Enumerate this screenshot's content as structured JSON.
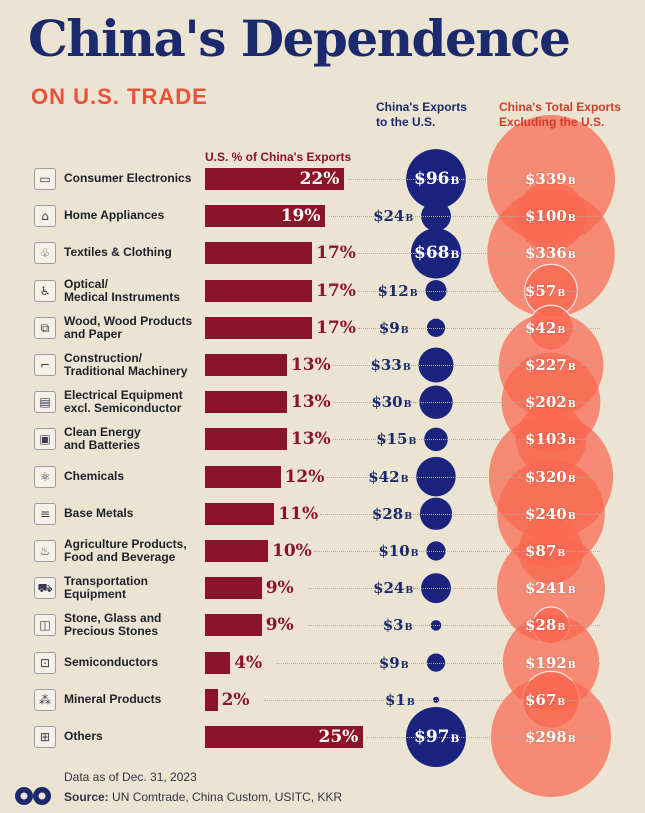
{
  "title": "China's Dependence",
  "subtitle": "ON U.S. TRADE",
  "headers": {
    "pct": "U.S. % of China's Exports",
    "us_line1": "China's Exports",
    "us_line2": "to the U.S.",
    "ex_line1": "China's Total Exports",
    "ex_line2": "Excluding the U.S."
  },
  "footer": {
    "date": "Data as of Dec. 31, 2023",
    "source_label": "Source:",
    "source_text": " UN Comtrade, China Custom, USITC, KKR"
  },
  "colors": {
    "title": "#1a2a6c",
    "subtitle": "#e8513a",
    "bar": "#8b1428",
    "us_bubble": "#1a237e",
    "ex_bubble": "#f9674f"
  },
  "chart_data": {
    "type": "bar",
    "unit_suffix": "B",
    "categories": [
      {
        "line1": "Consumer Electronics",
        "line2": "",
        "icon": "tv-icon",
        "glyph": "▭"
      },
      {
        "line1": "Home Appliances",
        "line2": "",
        "icon": "sofa-icon",
        "glyph": "⌂"
      },
      {
        "line1": "Textiles & Clothing",
        "line2": "",
        "icon": "shirt-icon",
        "glyph": "♧"
      },
      {
        "line1": "Optical/",
        "line2": "Medical Instruments",
        "icon": "wheelchair-icon",
        "glyph": "♿"
      },
      {
        "line1": "Wood, Wood Products",
        "line2": "and Paper",
        "icon": "log-icon",
        "glyph": "⧉"
      },
      {
        "line1": "Construction/",
        "line2": "Traditional Machinery",
        "icon": "crane-icon",
        "glyph": "⌐"
      },
      {
        "line1": "Electrical Equipment",
        "line2": "excl. Semiconductor",
        "icon": "device-icon",
        "glyph": "▤"
      },
      {
        "line1": "Clean Energy",
        "line2": "and Batteries",
        "icon": "battery-icon",
        "glyph": "▣"
      },
      {
        "line1": "Chemicals",
        "line2": "",
        "icon": "atom-icon",
        "glyph": "⚛"
      },
      {
        "line1": "Base Metals",
        "line2": "",
        "icon": "metal-bars-icon",
        "glyph": "≡"
      },
      {
        "line1": "Agriculture Products,",
        "line2": "Food and Beverage",
        "icon": "grocery-icon",
        "glyph": "♨"
      },
      {
        "line1": "Transportation",
        "line2": "Equipment",
        "icon": "car-icon",
        "glyph": "⛟"
      },
      {
        "line1": "Stone, Glass and",
        "line2": "Precious Stones",
        "icon": "window-icon",
        "glyph": "◫"
      },
      {
        "line1": "Semiconductors",
        "line2": "",
        "icon": "chip-icon",
        "glyph": "⊡"
      },
      {
        "line1": "Mineral Products",
        "line2": "",
        "icon": "minerals-icon",
        "glyph": "⁂"
      },
      {
        "line1": "Others",
        "line2": "",
        "icon": "boxes-icon",
        "glyph": "⊞"
      }
    ],
    "series": [
      {
        "name": "U.S. % of China's Exports",
        "values": [
          22,
          19,
          17,
          17,
          17,
          13,
          13,
          13,
          12,
          11,
          10,
          9,
          9,
          4,
          2,
          25
        ],
        "labels": [
          "22%",
          "19%",
          "17%",
          "17%",
          "17%",
          "13%",
          "13%",
          "13%",
          "12%",
          "11%",
          "10%",
          "9%",
          "9%",
          "4%",
          "2%",
          "25%"
        ]
      },
      {
        "name": "China's Exports to the U.S.",
        "values": [
          96,
          24,
          68,
          12,
          9,
          33,
          30,
          15,
          42,
          28,
          10,
          24,
          3,
          9,
          1,
          97
        ],
        "labels": [
          "$96",
          "$24",
          "$68",
          "$12",
          "$9",
          "$33",
          "$30",
          "$15",
          "$42",
          "$28",
          "$10",
          "$24",
          "$3",
          "$9",
          "$1",
          "$97"
        ]
      },
      {
        "name": "China's Total Exports Excluding the U.S.",
        "values": [
          339,
          100,
          336,
          57,
          42,
          227,
          202,
          103,
          320,
          240,
          87,
          241,
          28,
          192,
          67,
          298
        ],
        "labels": [
          "$339",
          "$100",
          "$336",
          "$57",
          "$42",
          "$227",
          "$202",
          "$103",
          "$320",
          "$240",
          "$87",
          "$241",
          "$28",
          "$192",
          "$67",
          "$298"
        ]
      }
    ]
  }
}
